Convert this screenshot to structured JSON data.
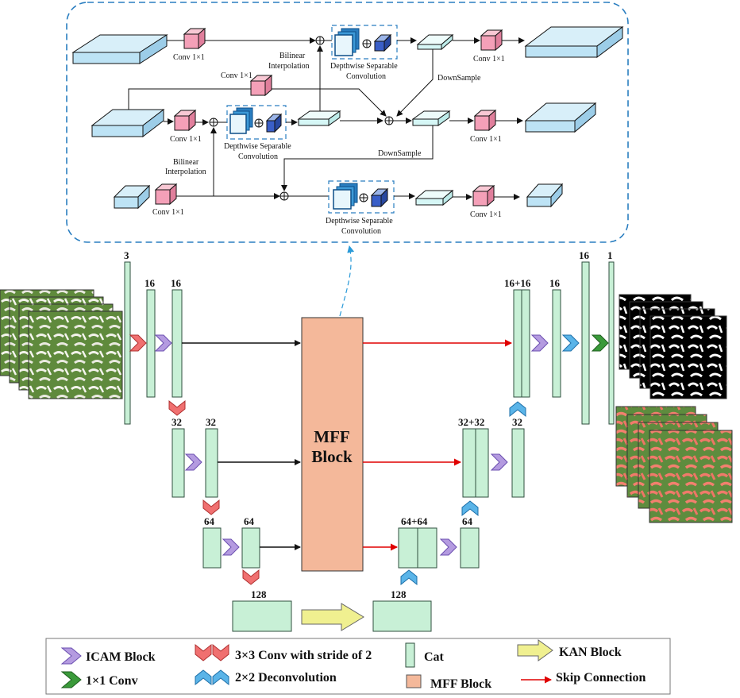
{
  "top_module": {
    "labels": {
      "conv1": "Conv 1×1",
      "bilinear_line1": "Bilinear",
      "bilinear_line2": "Interpolation",
      "dsc_line1": "Depthwise Separable",
      "dsc_line2": "Convolution",
      "downsample": "DownSample"
    }
  },
  "network": {
    "channels": {
      "c3": "3",
      "c16": "16",
      "c32": "32",
      "c64": "64",
      "c128": "128",
      "c16_16": "16+16",
      "c32_32": "32+32",
      "c64_64": "64+64",
      "c1": "1"
    },
    "mff_line1": "MFF",
    "mff_line2": "Block"
  },
  "legend": {
    "icam": "ICAM Block",
    "conv_stride": "3×3 Conv with stride of 2",
    "cat": "Cat",
    "kan": "KAN Block",
    "conv1x1": "1×1 Conv",
    "deconv": "2×2 Deconvolution",
    "mff": "MFF Block",
    "skip": "Skip Connection"
  },
  "colors": {
    "feature_map": "#c8f0d6",
    "mff_block": "#f4b89a",
    "icam": "#b49be0",
    "stride_conv": "#f07070",
    "deconv": "#5ab4e8",
    "conv1x1": "#3a9a3a",
    "kan": "#f0f090",
    "skip": "#e00000",
    "module_border": "#2a7ec0",
    "slab_blue": "#bde3f5",
    "slab_cyan": "#d6f7f6",
    "conv_pink": "#f4a0b8"
  }
}
